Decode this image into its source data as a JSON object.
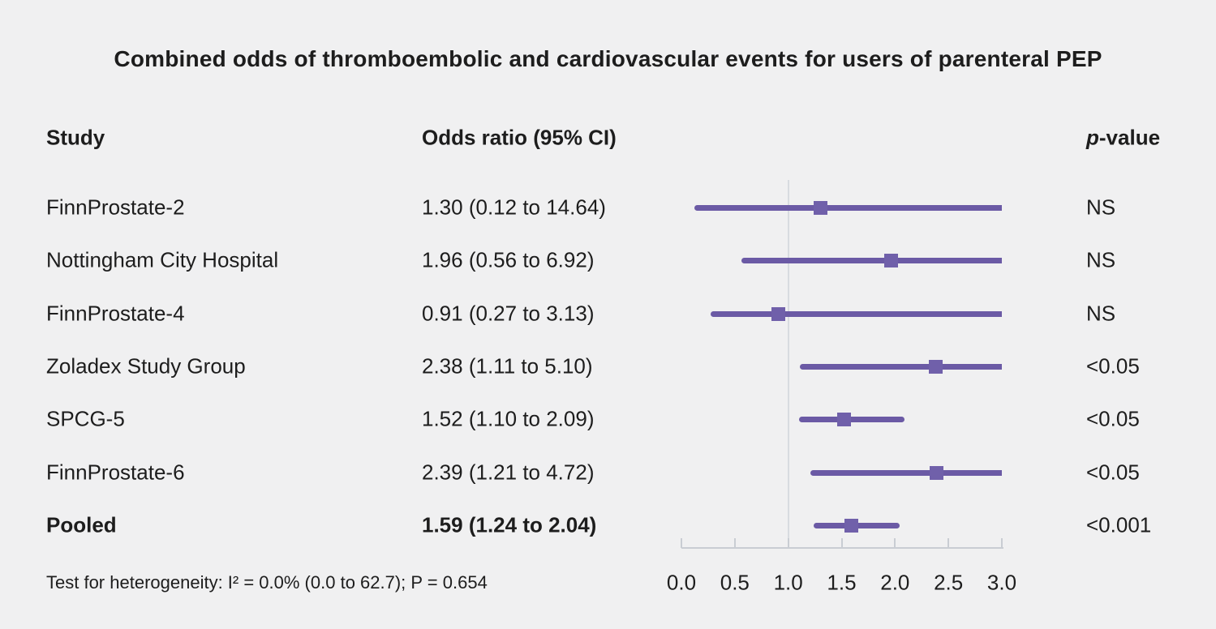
{
  "title": "Combined odds of thromboembolic and cardiovascular events for users of parenteral PEP",
  "columns": {
    "study": "Study",
    "odds_ratio": "Odds ratio (95% CI)",
    "p_italic": "p",
    "p_rest": "-value"
  },
  "footnote": "Test for heterogeneity: I² = 0.0% (0.0 to 62.7); P = 0.654",
  "colors": {
    "background": "#f0f0f1",
    "text": "#1d1d1d",
    "ci_line": "#6b5aa5",
    "marker": "#7060aa",
    "reference_line": "#d8dbe0",
    "axis": "#c9cdd3"
  },
  "chart_data": {
    "type": "forest",
    "title": "Combined odds of thromboembolic and cardiovascular events for users of parenteral PEP",
    "x_axis": {
      "min": 0.0,
      "max": 3.0,
      "ticks": [
        "0.0",
        "0.5",
        "1.0",
        "1.5",
        "2.0",
        "2.5",
        "3.0"
      ],
      "reference_line": 1.0,
      "clip_note": "upper CIs beyond 3.0 are clipped at 3.0 with flat ends"
    },
    "legend_position": "none",
    "grid": false,
    "rows": [
      {
        "study": "FinnProstate-2",
        "or": 1.3,
        "ci_low": 0.12,
        "ci_high": 14.64,
        "label": "1.30 (0.12 to 14.64)",
        "p": "NS",
        "bold": false
      },
      {
        "study": "Nottingham City Hospital",
        "or": 1.96,
        "ci_low": 0.56,
        "ci_high": 6.92,
        "label": "1.96 (0.56 to 6.92)",
        "p": "NS",
        "bold": false
      },
      {
        "study": "FinnProstate-4",
        "or": 0.91,
        "ci_low": 0.27,
        "ci_high": 3.13,
        "label": "0.91 (0.27 to 3.13)",
        "p": "NS",
        "bold": false
      },
      {
        "study": "Zoladex Study Group",
        "or": 2.38,
        "ci_low": 1.11,
        "ci_high": 5.1,
        "label": "2.38 (1.11 to 5.10)",
        "p": "<0.05",
        "bold": false
      },
      {
        "study": "SPCG-5",
        "or": 1.52,
        "ci_low": 1.1,
        "ci_high": 2.09,
        "label": "1.52 (1.10 to 2.09)",
        "p": "<0.05",
        "bold": false
      },
      {
        "study": "FinnProstate-6",
        "or": 2.39,
        "ci_low": 1.21,
        "ci_high": 4.72,
        "label": "2.39 (1.21 to 4.72)",
        "p": "<0.05",
        "bold": false
      },
      {
        "study": "Pooled",
        "or": 1.59,
        "ci_low": 1.24,
        "ci_high": 2.04,
        "label": "1.59 (1.24 to 2.04)",
        "p": "<0.001",
        "bold": true
      }
    ]
  }
}
